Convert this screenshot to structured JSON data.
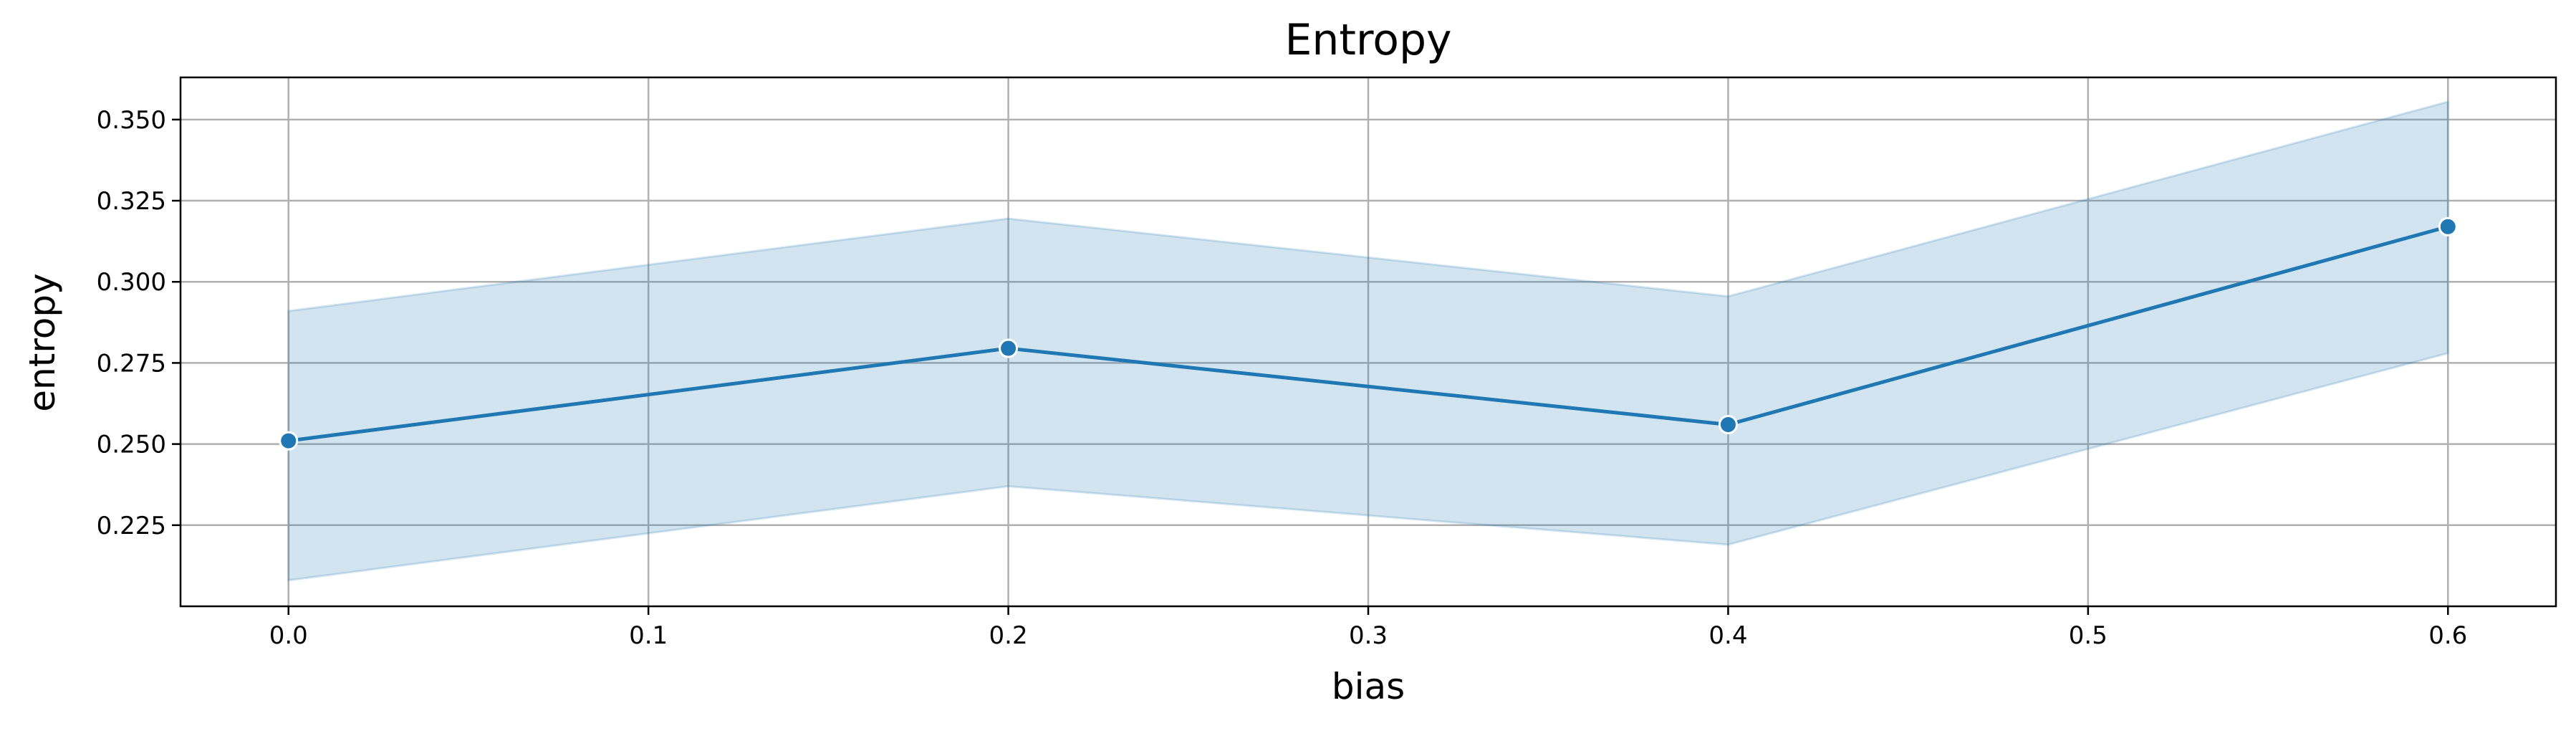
{
  "chart_data": {
    "type": "line",
    "title": "Entropy",
    "xlabel": "bias",
    "ylabel": "entropy",
    "xlim": [
      -0.03,
      0.63
    ],
    "ylim": [
      0.2,
      0.363
    ],
    "xticks": [
      0.0,
      0.1,
      0.2,
      0.3,
      0.4,
      0.5,
      0.6
    ],
    "xtick_labels": [
      "0.0",
      "0.1",
      "0.2",
      "0.3",
      "0.4",
      "0.5",
      "0.6"
    ],
    "yticks": [
      0.225,
      0.25,
      0.275,
      0.3,
      0.325,
      0.35
    ],
    "ytick_labels": [
      "0.225",
      "0.250",
      "0.275",
      "0.300",
      "0.325",
      "0.350"
    ],
    "grid": true,
    "series": [
      {
        "x": [
          0.0,
          0.2,
          0.4,
          0.6
        ],
        "y": [
          0.251,
          0.2795,
          0.256,
          0.317
        ],
        "ci_lower": [
          0.208,
          0.237,
          0.219,
          0.278
        ],
        "ci_upper": [
          0.291,
          0.3195,
          0.2955,
          0.3555
        ]
      }
    ],
    "colors": {
      "line": "#1f77b4",
      "band": "#1f77b4",
      "grid": "#b0b0b0",
      "marker_edge": "#ffffff"
    }
  }
}
